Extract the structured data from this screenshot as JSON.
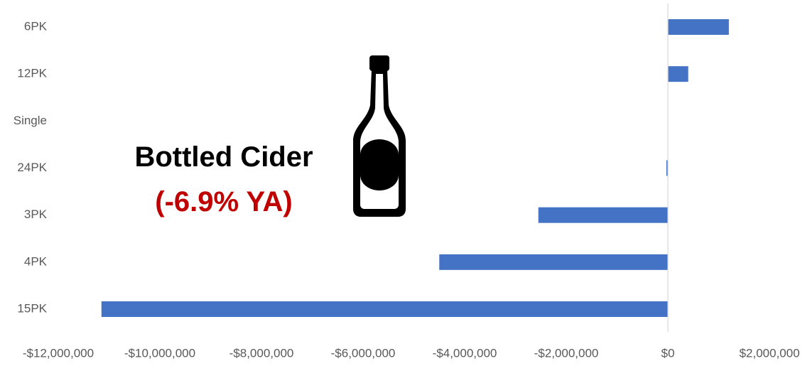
{
  "chart_data": {
    "type": "bar",
    "orientation": "horizontal",
    "categories": [
      "6PK",
      "12PK",
      "Single",
      "24PK",
      "3PK",
      "4PK",
      "15PK"
    ],
    "values": [
      1200000,
      400000,
      0,
      -30000,
      -2550000,
      -4500000,
      -11150000
    ],
    "xlim": [
      -12000000,
      2000000
    ],
    "xticks": [
      -12000000,
      -10000000,
      -8000000,
      -6000000,
      -4000000,
      -2000000,
      0,
      2000000
    ],
    "xtick_labels": [
      "-$12,000,000",
      "-$10,000,000",
      "-$8,000,000",
      "-$6,000,000",
      "-$4,000,000",
      "-$2,000,000",
      "$0",
      "$2,000,000"
    ],
    "bar_color": "#4472c4",
    "grid": false,
    "legend": "none"
  },
  "annotation": {
    "title": "Bottled Cider",
    "subtitle": "(-6.9% YA)",
    "title_color": "#000000",
    "subtitle_color": "#c00000",
    "icon": "bottle-icon"
  }
}
